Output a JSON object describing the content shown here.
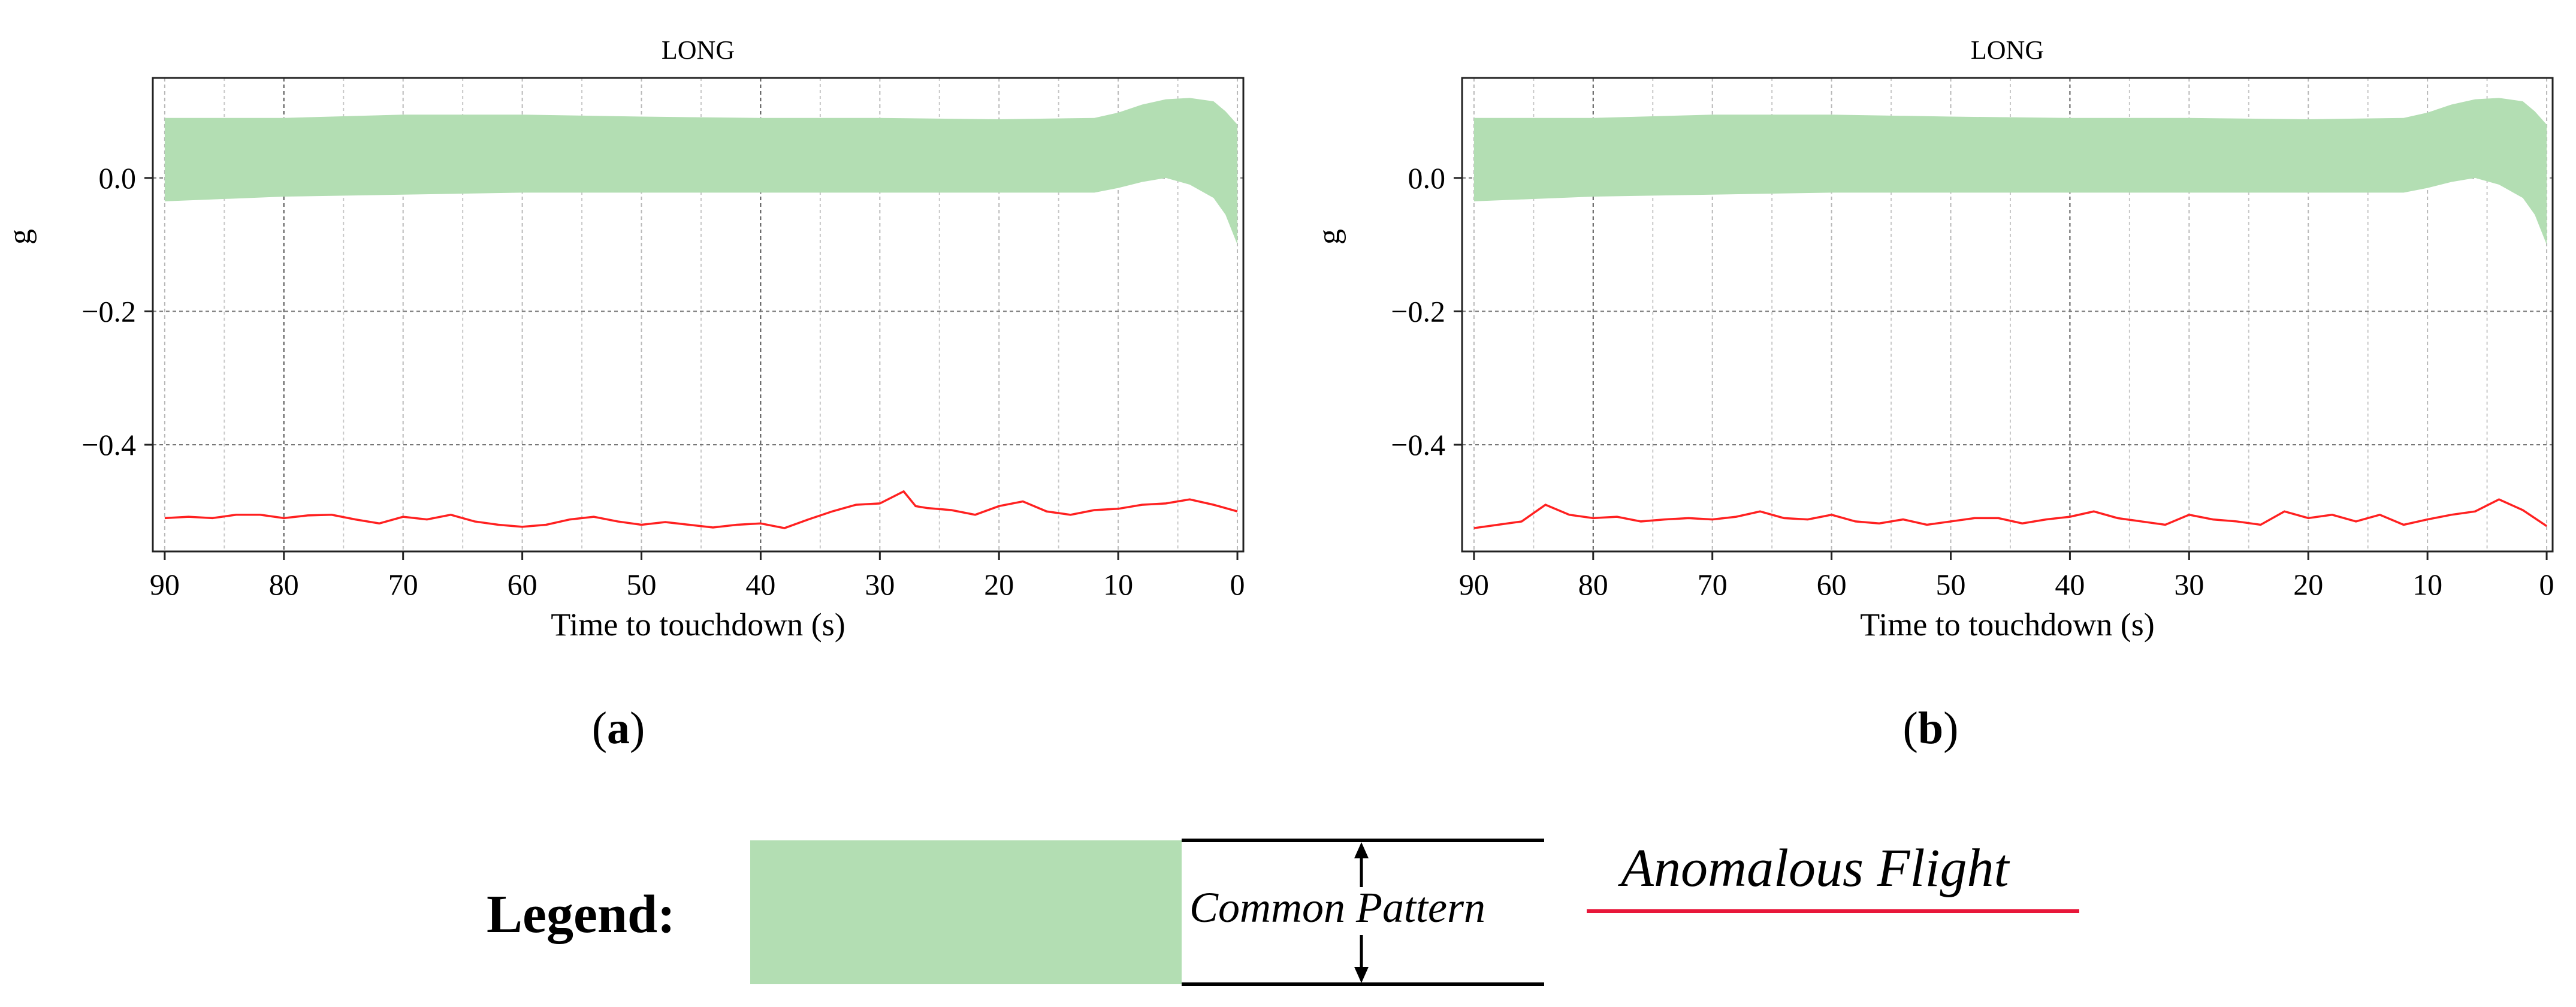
{
  "chart_data": [
    {
      "type": "area",
      "panel_label": "a",
      "title": "LONG",
      "xlabel": "Time to touchdown (s)",
      "ylabel": "g",
      "xlim": [
        91,
        -0.5
      ],
      "ylim": [
        -0.56,
        0.15
      ],
      "xticks": [
        90,
        80,
        70,
        60,
        50,
        40,
        30,
        20,
        10,
        0
      ],
      "yticks": [
        0.0,
        -0.2,
        -0.4
      ],
      "ytick_labels": [
        "0.0",
        "−0.2",
        "−0.4"
      ],
      "grid": true,
      "band": {
        "name": "Common Pattern",
        "color": "#b3deb3",
        "x": [
          90,
          80,
          70,
          60,
          50,
          40,
          30,
          20,
          12,
          10,
          8,
          6,
          4,
          2,
          1,
          0
        ],
        "upper": [
          0.09,
          0.09,
          0.095,
          0.095,
          0.092,
          0.09,
          0.09,
          0.088,
          0.09,
          0.098,
          0.11,
          0.118,
          0.12,
          0.115,
          0.1,
          0.08
        ],
        "lower": [
          -0.035,
          -0.028,
          -0.025,
          -0.022,
          -0.022,
          -0.022,
          -0.022,
          -0.022,
          -0.022,
          -0.015,
          -0.006,
          0.0,
          -0.01,
          -0.03,
          -0.055,
          -0.1
        ]
      },
      "series": [
        {
          "name": "Anomalous Flight",
          "color": "#ff2020",
          "x": [
            90,
            88,
            86,
            84,
            82,
            80,
            78,
            76,
            74,
            72,
            70,
            68,
            66,
            64,
            62,
            60,
            58,
            56,
            54,
            52,
            50,
            48,
            46,
            44,
            42,
            40,
            38,
            36,
            34,
            32,
            30,
            28,
            27,
            26,
            24,
            22,
            20,
            18,
            16,
            14,
            12,
            10,
            8,
            6,
            4,
            2,
            0
          ],
          "values": [
            -0.51,
            -0.508,
            -0.51,
            -0.505,
            -0.505,
            -0.51,
            -0.506,
            -0.505,
            -0.512,
            -0.518,
            -0.508,
            -0.512,
            -0.505,
            -0.515,
            -0.52,
            -0.523,
            -0.52,
            -0.512,
            -0.508,
            -0.515,
            -0.52,
            -0.516,
            -0.52,
            -0.524,
            -0.52,
            -0.518,
            -0.525,
            -0.512,
            -0.5,
            -0.49,
            -0.488,
            -0.47,
            -0.492,
            -0.495,
            -0.498,
            -0.505,
            -0.492,
            -0.485,
            -0.5,
            -0.505,
            -0.498,
            -0.496,
            -0.49,
            -0.488,
            -0.482,
            -0.49,
            -0.5
          ]
        }
      ]
    },
    {
      "type": "area",
      "panel_label": "b",
      "title": "LONG",
      "xlabel": "Time to touchdown (s)",
      "ylabel": "g",
      "xlim": [
        91,
        -0.5
      ],
      "ylim": [
        -0.56,
        0.15
      ],
      "xticks": [
        90,
        80,
        70,
        60,
        50,
        40,
        30,
        20,
        10,
        0
      ],
      "yticks": [
        0.0,
        -0.2,
        -0.4
      ],
      "ytick_labels": [
        "0.0",
        "−0.2",
        "−0.4"
      ],
      "grid": true,
      "band": {
        "name": "Common Pattern",
        "color": "#b3deb3",
        "x": [
          90,
          80,
          70,
          60,
          50,
          40,
          30,
          20,
          12,
          10,
          8,
          6,
          4,
          2,
          1,
          0
        ],
        "upper": [
          0.09,
          0.09,
          0.095,
          0.095,
          0.092,
          0.09,
          0.09,
          0.088,
          0.09,
          0.098,
          0.11,
          0.118,
          0.12,
          0.115,
          0.1,
          0.08
        ],
        "lower": [
          -0.035,
          -0.028,
          -0.025,
          -0.022,
          -0.022,
          -0.022,
          -0.022,
          -0.022,
          -0.022,
          -0.015,
          -0.006,
          0.0,
          -0.01,
          -0.03,
          -0.055,
          -0.1
        ]
      },
      "series": [
        {
          "name": "Anomalous Flight",
          "color": "#ff2020",
          "x": [
            90,
            88,
            86,
            84,
            82,
            80,
            78,
            76,
            74,
            72,
            70,
            68,
            66,
            64,
            62,
            60,
            58,
            56,
            54,
            52,
            50,
            48,
            46,
            44,
            42,
            40,
            38,
            36,
            34,
            32,
            30,
            28,
            26,
            24,
            22,
            20,
            18,
            16,
            14,
            12,
            10,
            8,
            6,
            4,
            2,
            0
          ],
          "values": [
            -0.525,
            -0.52,
            -0.515,
            -0.49,
            -0.505,
            -0.51,
            -0.508,
            -0.515,
            -0.512,
            -0.51,
            -0.512,
            -0.508,
            -0.5,
            -0.51,
            -0.512,
            -0.505,
            -0.515,
            -0.518,
            -0.512,
            -0.52,
            -0.515,
            -0.51,
            -0.51,
            -0.518,
            -0.512,
            -0.508,
            -0.5,
            -0.51,
            -0.515,
            -0.52,
            -0.505,
            -0.512,
            -0.515,
            -0.52,
            -0.5,
            -0.51,
            -0.505,
            -0.515,
            -0.505,
            -0.52,
            -0.512,
            -0.505,
            -0.5,
            -0.482,
            -0.498,
            -0.522
          ]
        }
      ]
    }
  ],
  "legend": {
    "title": "Legend:",
    "common_label": "Common Pattern",
    "anomalous_label": "Anomalous Flight",
    "band_color": "#b3deb3",
    "line_color": "#e8173a"
  }
}
